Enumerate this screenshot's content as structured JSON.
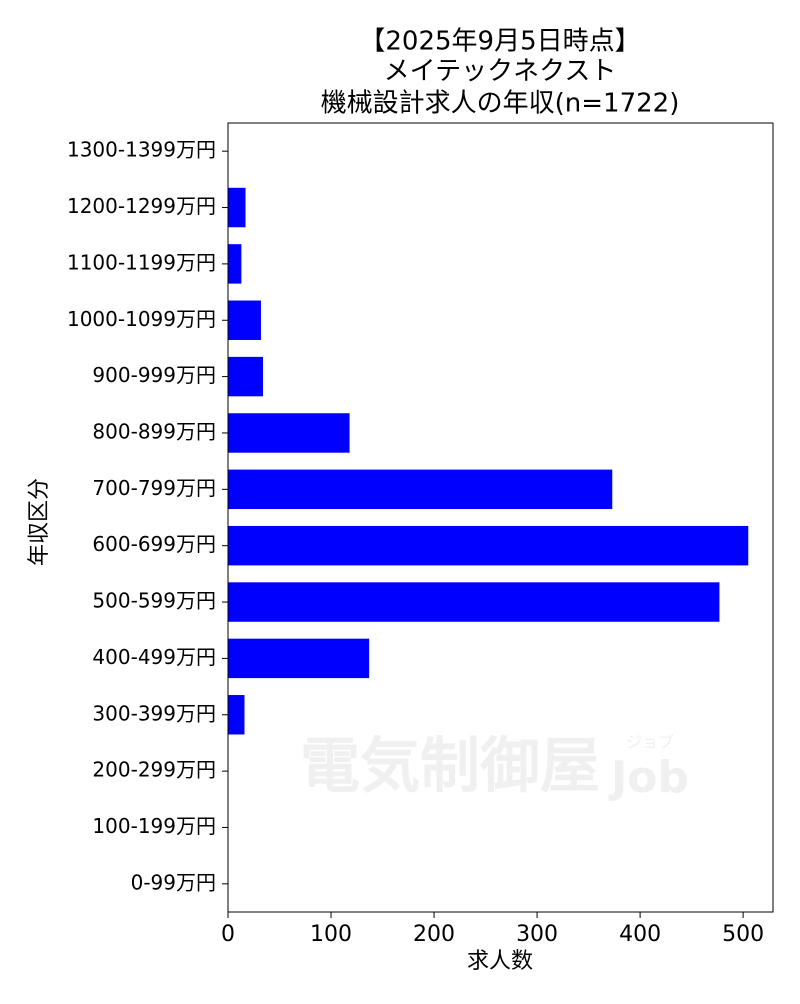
{
  "chart_data": {
    "type": "barh",
    "title": [
      "【2025年9月5日時点】",
      "メイテックネクスト",
      "機械設計求人の年収(n=1722)"
    ],
    "xlabel": "求人数",
    "ylabel": "年収区分",
    "categories": [
      "0-99万円",
      "100-199万円",
      "200-299万円",
      "300-399万円",
      "400-499万円",
      "500-599万円",
      "600-699万円",
      "700-799万円",
      "800-899万円",
      "900-999万円",
      "1000-1099万円",
      "1100-1199万円",
      "1200-1299万円",
      "1300-1399万円"
    ],
    "values": [
      0,
      0,
      0,
      16,
      137,
      477,
      505,
      373,
      118,
      34,
      32,
      13,
      17,
      0
    ],
    "color": "#0000ff",
    "xlim": [
      0,
      529
    ],
    "xticks": [
      0,
      100,
      200,
      300,
      400,
      500
    ],
    "watermark": "電気制御屋",
    "watermark_sub": "ジョブ",
    "watermark_job": "Job"
  }
}
